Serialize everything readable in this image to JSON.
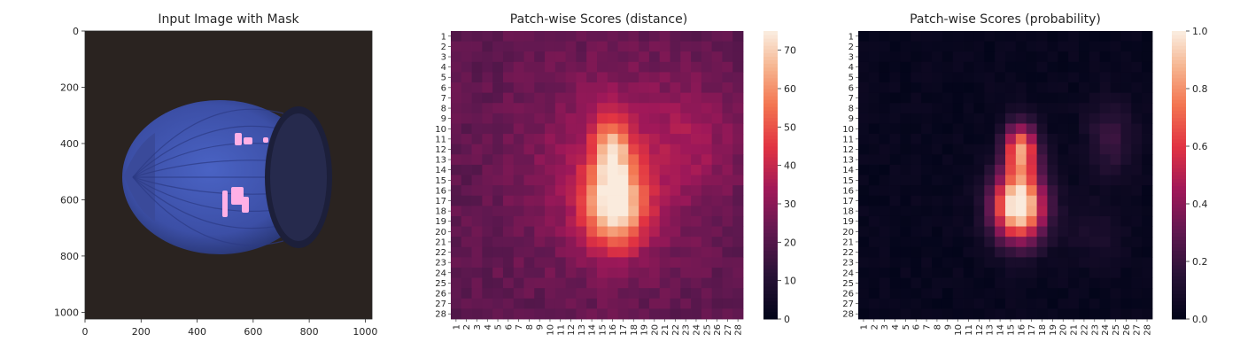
{
  "chart_data": [
    {
      "type": "image",
      "title": "Input Image with Mask",
      "x_ticks": [
        0,
        200,
        400,
        600,
        800,
        1000
      ],
      "y_ticks": [
        0,
        200,
        400,
        600,
        800,
        1000
      ],
      "xlim": [
        0,
        1024
      ],
      "ylim": [
        1024,
        0
      ],
      "image": {
        "subject": "hazelnut",
        "background_color": "#2a2320",
        "object_color": "#3c4fa6",
        "mask_color": "#ffb0e6",
        "mask_text": "ICKrr"
      }
    },
    {
      "type": "heatmap",
      "title": "Patch-wise Scores (distance)",
      "rows": [
        "1",
        "2",
        "3",
        "4",
        "5",
        "6",
        "7",
        "8",
        "9",
        "10",
        "11",
        "12",
        "13",
        "14",
        "15",
        "16",
        "17",
        "18",
        "19",
        "20",
        "21",
        "22",
        "23",
        "24",
        "25",
        "26",
        "27",
        "28"
      ],
      "cols": [
        "1",
        "2",
        "3",
        "4",
        "5",
        "6",
        "7",
        "8",
        "9",
        "10",
        "11",
        "12",
        "13",
        "14",
        "15",
        "16",
        "17",
        "18",
        "19",
        "20",
        "21",
        "22",
        "23",
        "24",
        "25",
        "26",
        "27",
        "28"
      ],
      "colorbar": {
        "min": 0,
        "max": 75,
        "ticks": [
          0,
          10,
          20,
          30,
          40,
          50,
          60,
          70
        ]
      },
      "colormap": "rocket",
      "field": {
        "base": 22,
        "noise": 3,
        "blobs": [
          {
            "row": 12,
            "col": 16,
            "sr": 2.5,
            "sc": 1.3,
            "amp": 30
          },
          {
            "row": 17.5,
            "col": 16.2,
            "sr": 2.8,
            "sc": 2.0,
            "amp": 48
          },
          {
            "row": 14,
            "col": 16,
            "sr": 6.5,
            "sc": 5.5,
            "amp": 14
          },
          {
            "row": 11,
            "col": 24,
            "sr": 4.0,
            "sc": 3.0,
            "amp": 8
          }
        ]
      }
    },
    {
      "type": "heatmap",
      "title": "Patch-wise Scores (probability)",
      "rows": [
        "1",
        "2",
        "3",
        "4",
        "5",
        "6",
        "7",
        "8",
        "9",
        "10",
        "11",
        "12",
        "13",
        "14",
        "15",
        "16",
        "17",
        "18",
        "19",
        "20",
        "21",
        "22",
        "23",
        "24",
        "25",
        "26",
        "27",
        "28"
      ],
      "cols": [
        "1",
        "2",
        "3",
        "4",
        "5",
        "6",
        "7",
        "8",
        "9",
        "10",
        "11",
        "12",
        "13",
        "14",
        "15",
        "16",
        "17",
        "18",
        "19",
        "20",
        "21",
        "22",
        "23",
        "24",
        "25",
        "26",
        "27",
        "28"
      ],
      "colorbar": {
        "min": 0.0,
        "max": 1.0,
        "ticks": [
          "0.0",
          "0.2",
          "0.4",
          "0.6",
          "0.8",
          "1.0"
        ]
      },
      "colormap": "rocket",
      "field": {
        "base": 0.02,
        "noise": 0.02,
        "blobs": [
          {
            "row": 12,
            "col": 16,
            "sr": 1.8,
            "sc": 1.1,
            "amp": 0.75
          },
          {
            "row": 17.5,
            "col": 15.8,
            "sr": 2.4,
            "sc": 1.7,
            "amp": 1.1
          },
          {
            "row": 11,
            "col": 24.5,
            "sr": 2.5,
            "sc": 1.5,
            "amp": 0.18
          },
          {
            "row": 20,
            "col": 23,
            "sr": 2.0,
            "sc": 2.0,
            "amp": 0.08
          }
        ]
      }
    }
  ]
}
